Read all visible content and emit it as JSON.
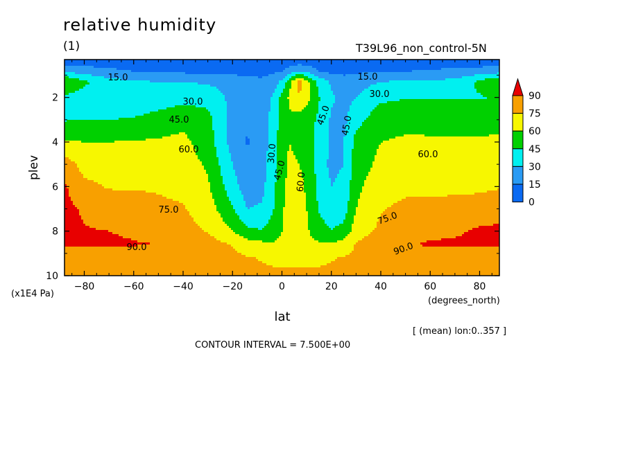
{
  "header": {
    "title": "relative humidity",
    "subtitle": "(1)",
    "run_name": "T39L96_non_control-5N"
  },
  "footer": {
    "mean_note": "[ (mean) lon:0..357 ]",
    "contour_interval": "CONTOUR INTERVAL = 7.500E+00"
  },
  "chart_data": {
    "type": "heatmap",
    "title": "relative humidity",
    "subtitle": "(1)",
    "xlabel": "lat",
    "xunit": "(degrees_north)",
    "ylabel": "plev",
    "yunit": "(x1E4 Pa)",
    "xlim": [
      -88,
      88
    ],
    "ylim": [
      0.3,
      10
    ],
    "y_inverted": true,
    "x_ticks": [
      -80,
      -60,
      -40,
      -20,
      0,
      20,
      40,
      60,
      80
    ],
    "y_ticks": [
      2,
      4,
      6,
      8,
      10
    ],
    "contour_interval": 7.5,
    "contour_labels": [
      "15.0",
      "30.0",
      "45.0",
      "60.0",
      "75.0",
      "90.0"
    ],
    "colorbar": {
      "levels": [
        0,
        15,
        30,
        45,
        60,
        75,
        90
      ],
      "colors": [
        "#0a6af2",
        "#2a9bf4",
        "#00f0f0",
        "#00d000",
        "#f7f700",
        "#f8a000",
        "#e80000"
      ],
      "labels": [
        "0",
        "15",
        "30",
        "45",
        "60",
        "75",
        "90"
      ]
    },
    "lat_grid": [
      -88,
      -80,
      -70,
      -60,
      -50,
      -40,
      -30,
      -20,
      -14,
      -8,
      -3,
      0,
      3,
      7,
      11,
      15,
      20,
      25,
      30,
      40,
      50,
      60,
      70,
      80,
      88
    ],
    "plev_grid": [
      0.3,
      0.8,
      1.3,
      2,
      3,
      4,
      5,
      6,
      7,
      8,
      8.6,
      9.2,
      10
    ],
    "values": [
      [
        5,
        5,
        5,
        5,
        5,
        5,
        5,
        5,
        5,
        5,
        5,
        5,
        5,
        5,
        5,
        5,
        5,
        5,
        5,
        5,
        5,
        5,
        5,
        5,
        5
      ],
      [
        25,
        22,
        18,
        14,
        12,
        11,
        11,
        10,
        10,
        10,
        12,
        14,
        20,
        28,
        22,
        14,
        10,
        10,
        12,
        13,
        14,
        16,
        18,
        20,
        22
      ],
      [
        62,
        48,
        36,
        32,
        30,
        30,
        28,
        24,
        20,
        18,
        24,
        34,
        55,
        82,
        60,
        40,
        28,
        22,
        24,
        30,
        32,
        32,
        35,
        48,
        62
      ],
      [
        42,
        38,
        36,
        36,
        38,
        40,
        40,
        26,
        20,
        18,
        34,
        50,
        62,
        74,
        62,
        46,
        32,
        26,
        30,
        42,
        44,
        44,
        44,
        44,
        46
      ],
      [
        44,
        45,
        45,
        46,
        50,
        55,
        50,
        24,
        16,
        22,
        38,
        52,
        58,
        52,
        50,
        42,
        28,
        26,
        40,
        54,
        56,
        55,
        54,
        54,
        54
      ],
      [
        62,
        60,
        60,
        61,
        62,
        64,
        52,
        24,
        14,
        22,
        40,
        54,
        60,
        56,
        52,
        40,
        28,
        30,
        50,
        60,
        62,
        62,
        62,
        62,
        63
      ],
      [
        82,
        70,
        70,
        70,
        70,
        67,
        58,
        30,
        18,
        24,
        40,
        54,
        63,
        60,
        54,
        38,
        26,
        30,
        52,
        64,
        66,
        66,
        66,
        66,
        68
      ],
      [
        92,
        78,
        74,
        74,
        74,
        72,
        62,
        36,
        22,
        26,
        44,
        56,
        64,
        64,
        56,
        40,
        30,
        34,
        56,
        70,
        72,
        72,
        72,
        72,
        74
      ],
      [
        94,
        88,
        82,
        80,
        77,
        76,
        68,
        46,
        30,
        32,
        46,
        58,
        66,
        66,
        58,
        44,
        33,
        38,
        60,
        74,
        78,
        78,
        80,
        82,
        84
      ],
      [
        94,
        91,
        90,
        88,
        84,
        80,
        74,
        60,
        48,
        46,
        52,
        60,
        66,
        66,
        60,
        52,
        46,
        50,
        68,
        78,
        82,
        86,
        88,
        92,
        93
      ],
      [
        93,
        92,
        92,
        91,
        90,
        86,
        82,
        74,
        68,
        64,
        62,
        64,
        66,
        66,
        64,
        62,
        62,
        66,
        76,
        84,
        88,
        92,
        92,
        93,
        93
      ],
      [
        80,
        80,
        80,
        80,
        80,
        80,
        80,
        78,
        76,
        74,
        72,
        72,
        72,
        72,
        72,
        72,
        74,
        76,
        78,
        80,
        80,
        80,
        80,
        80,
        80
      ],
      [
        78,
        78,
        78,
        78,
        78,
        78,
        78,
        78,
        78,
        78,
        78,
        78,
        78,
        78,
        78,
        78,
        78,
        78,
        78,
        78,
        78,
        78,
        78,
        78,
        78
      ]
    ]
  }
}
